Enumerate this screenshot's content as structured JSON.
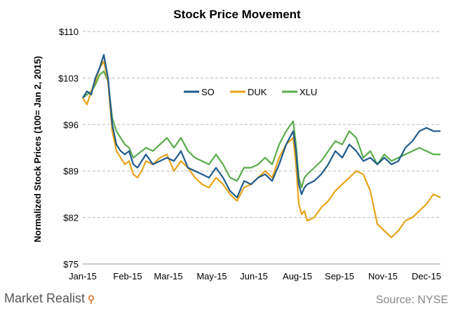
{
  "chart_data": {
    "type": "line",
    "title": "Stock Price Movement",
    "ylabel": "Normalized Stock Prices (100= Jan 2, 2015)",
    "xlabel": "",
    "ylim": [
      75,
      110
    ],
    "y_ticks": [
      "$75",
      "$82",
      "$89",
      "$96",
      "$103",
      "$110"
    ],
    "y_tick_values": [
      75,
      82,
      89,
      96,
      103,
      110
    ],
    "x_ticks": [
      "Jan-15",
      "Feb-15",
      "Mar-15",
      "May-15",
      "Jun-15",
      "Aug-15",
      "Sep-15",
      "Nov-15",
      "Dec-15"
    ],
    "x_tick_positions": [
      0,
      32,
      61,
      92,
      122,
      153,
      183,
      214,
      245
    ],
    "x_range": [
      0,
      255
    ],
    "grid": "horizontal-dashed",
    "legend_position": "center-top",
    "series": [
      {
        "name": "SO",
        "color": "#1f5a8c",
        "x": [
          0,
          3,
          6,
          9,
          12,
          15,
          18,
          21,
          24,
          27,
          30,
          33,
          36,
          39,
          42,
          45,
          50,
          55,
          60,
          65,
          70,
          75,
          80,
          85,
          90,
          95,
          100,
          105,
          110,
          115,
          120,
          125,
          130,
          135,
          140,
          145,
          150,
          152,
          154,
          156,
          158,
          160,
          165,
          170,
          175,
          180,
          185,
          190,
          195,
          200,
          205,
          210,
          215,
          220,
          225,
          230,
          235,
          240,
          245,
          250,
          255
        ],
        "values": [
          100,
          101,
          100.5,
          103,
          104.5,
          106.5,
          103,
          96,
          93,
          92,
          91.5,
          92,
          90,
          89.5,
          90.5,
          91.5,
          90,
          90.5,
          91,
          90.5,
          92,
          89.5,
          89,
          88.5,
          88,
          89.5,
          88,
          86,
          85,
          87.5,
          87,
          88,
          88.5,
          87.5,
          90,
          93,
          95,
          92,
          87,
          85.5,
          86.5,
          87,
          87.5,
          88.5,
          90,
          92,
          91,
          93,
          92,
          90.5,
          91,
          90,
          91,
          90,
          90.5,
          92.5,
          93.5,
          95,
          95.5,
          95,
          95
        ]
      },
      {
        "name": "DUK",
        "color": "#e8a317",
        "x": [
          0,
          3,
          6,
          9,
          12,
          15,
          18,
          21,
          24,
          27,
          30,
          33,
          36,
          39,
          42,
          45,
          50,
          55,
          60,
          65,
          70,
          75,
          80,
          85,
          90,
          95,
          100,
          105,
          110,
          115,
          120,
          125,
          130,
          135,
          140,
          145,
          150,
          152,
          154,
          156,
          158,
          160,
          165,
          170,
          175,
          180,
          185,
          190,
          195,
          200,
          205,
          210,
          215,
          220,
          225,
          230,
          235,
          240,
          245,
          250,
          255
        ],
        "values": [
          100,
          99,
          101,
          102.5,
          104.5,
          105.5,
          102.5,
          95,
          92,
          91,
          90,
          90.5,
          88.5,
          88,
          89,
          90.5,
          90,
          91,
          91.5,
          89,
          90.5,
          89.5,
          88,
          87,
          86.5,
          88,
          87,
          85.5,
          84.5,
          86.5,
          87,
          88,
          89,
          88,
          91,
          93,
          94,
          90,
          84,
          82.5,
          83,
          81.5,
          82,
          83.5,
          84.5,
          86,
          87,
          88,
          89,
          88.5,
          86,
          81,
          80,
          79,
          80,
          81.5,
          82,
          83,
          84,
          85.5,
          85
        ]
      },
      {
        "name": "XLU",
        "color": "#5aab4c",
        "x": [
          0,
          3,
          6,
          9,
          12,
          15,
          18,
          21,
          24,
          27,
          30,
          33,
          36,
          39,
          42,
          45,
          50,
          55,
          60,
          65,
          70,
          75,
          80,
          85,
          90,
          95,
          100,
          105,
          110,
          115,
          120,
          125,
          130,
          135,
          140,
          145,
          150,
          152,
          154,
          156,
          158,
          160,
          165,
          170,
          175,
          180,
          185,
          190,
          195,
          200,
          205,
          210,
          215,
          220,
          225,
          230,
          235,
          240,
          245,
          250,
          255
        ],
        "values": [
          100,
          100.5,
          101,
          102,
          103.5,
          104,
          102.5,
          97,
          95,
          94,
          93,
          92.5,
          91,
          91.5,
          92,
          92.5,
          92,
          93,
          94,
          92.5,
          94,
          92,
          91,
          90.5,
          90,
          91.5,
          90,
          88,
          87.5,
          89.5,
          89.5,
          90,
          91,
          90,
          93,
          95,
          96.5,
          93,
          88,
          86.5,
          88,
          88.5,
          89.5,
          90.5,
          92,
          93.5,
          93,
          95,
          94,
          91,
          92,
          90,
          91.5,
          90.5,
          91,
          91.5,
          92,
          92.5,
          92,
          91.5,
          91.5
        ]
      }
    ]
  },
  "footer": {
    "brand": "Market Realist",
    "source": "Source: NYSE"
  }
}
